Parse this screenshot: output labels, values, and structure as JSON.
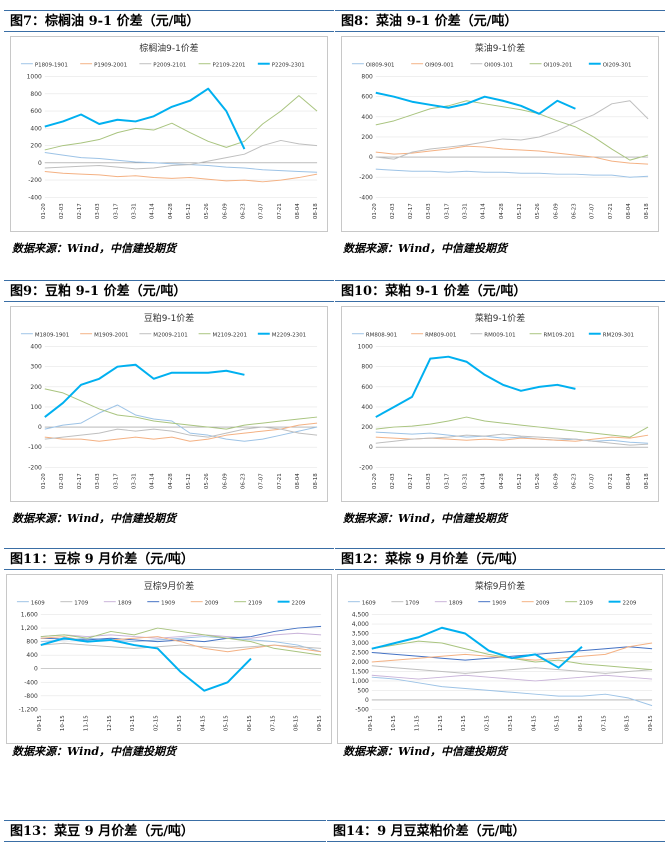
{
  "source_text": "数据来源：Wind，中信建投期货",
  "figures": [
    {
      "label": "图7：棕榈油 9-1 价差（元/吨）"
    },
    {
      "label": "图8：菜油 9-1 价差（元/吨）"
    },
    {
      "label": "图9：豆粕 9-1 价差（元/吨）"
    },
    {
      "label": "图10：菜粕 9-1 价差（元/吨）"
    },
    {
      "label": "图11：豆棕 9 月价差（元/吨）"
    },
    {
      "label": "图12：菜棕 9 月价差（元/吨）"
    },
    {
      "label": "图13：菜豆 9 月价差（元/吨）"
    },
    {
      "label": "图14：9 月豆菜粕价差（元/吨）"
    }
  ],
  "chart_data": [
    {
      "type": "line",
      "title": "棕榈油9-1价差",
      "ylim": [
        -400,
        1000
      ],
      "yticks": [
        "1000",
        "800",
        "600",
        "400",
        "200",
        "0",
        "-200",
        "-400"
      ],
      "categories": [
        "01-20",
        "02-03",
        "02-17",
        "03-03",
        "03-17",
        "03-31",
        "04-14",
        "04-28",
        "05-12",
        "05-26",
        "06-09",
        "06-23",
        "07-07",
        "07-21",
        "08-04",
        "08-18"
      ],
      "series": [
        {
          "name": "P1809-1901",
          "color": "#9dc3e6",
          "width": 1,
          "values": [
            120,
            90,
            60,
            50,
            30,
            10,
            0,
            -10,
            -20,
            -30,
            -50,
            -60,
            -80,
            -90,
            -100,
            -110
          ]
        },
        {
          "name": "P1909-2001",
          "color": "#f4b183",
          "width": 1,
          "values": [
            -100,
            -120,
            -130,
            -140,
            -160,
            -150,
            -170,
            -180,
            -170,
            -190,
            -210,
            -200,
            -220,
            -200,
            -170,
            -130
          ]
        },
        {
          "name": "P2009-2101",
          "color": "#bfbfbf",
          "width": 1,
          "values": [
            -60,
            -50,
            -40,
            -30,
            -50,
            -70,
            -60,
            -30,
            -20,
            20,
            60,
            100,
            200,
            260,
            220,
            200
          ]
        },
        {
          "name": "P2109-2201",
          "color": "#a9c47f",
          "width": 1,
          "values": [
            150,
            200,
            230,
            270,
            350,
            400,
            380,
            460,
            350,
            250,
            180,
            250,
            450,
            600,
            780,
            600
          ]
        },
        {
          "name": "P2209-2301",
          "color": "#00b0f0",
          "width": 2,
          "values": [
            420,
            480,
            560,
            450,
            500,
            480,
            540,
            650,
            720,
            860,
            600,
            160,
            null,
            null,
            null,
            null
          ]
        }
      ]
    },
    {
      "type": "line",
      "title": "菜油9-1价差",
      "ylim": [
        -400,
        800
      ],
      "yticks": [
        "800",
        "600",
        "400",
        "200",
        "0",
        "-200",
        "-400"
      ],
      "categories": [
        "01-20",
        "02-03",
        "02-17",
        "03-03",
        "03-17",
        "03-31",
        "04-14",
        "04-28",
        "05-12",
        "05-26",
        "06-09",
        "06-23",
        "07-07",
        "07-21",
        "08-04",
        "08-18"
      ],
      "series": [
        {
          "name": "OI809-901",
          "color": "#9dc3e6",
          "width": 1,
          "values": [
            -120,
            -130,
            -140,
            -140,
            -150,
            -140,
            -150,
            -150,
            -160,
            -160,
            -170,
            -170,
            -180,
            -180,
            -200,
            -190
          ]
        },
        {
          "name": "OI909-001",
          "color": "#f4b183",
          "width": 1,
          "values": [
            50,
            30,
            40,
            60,
            80,
            110,
            100,
            80,
            70,
            60,
            40,
            20,
            0,
            -40,
            -60,
            -70
          ]
        },
        {
          "name": "OI009-101",
          "color": "#bfbfbf",
          "width": 1,
          "values": [
            0,
            -20,
            50,
            80,
            100,
            120,
            150,
            180,
            170,
            200,
            260,
            350,
            420,
            530,
            560,
            380
          ]
        },
        {
          "name": "OI109-201",
          "color": "#a9c47f",
          "width": 1,
          "values": [
            320,
            360,
            420,
            480,
            510,
            560,
            530,
            500,
            470,
            430,
            360,
            300,
            200,
            80,
            -30,
            20
          ]
        },
        {
          "name": "OI209-301",
          "color": "#00b0f0",
          "width": 2,
          "values": [
            640,
            600,
            550,
            520,
            490,
            530,
            600,
            560,
            510,
            430,
            560,
            480,
            null,
            null,
            null,
            null
          ]
        }
      ]
    },
    {
      "type": "line",
      "title": "豆粕9-1价差",
      "ylim": [
        -200,
        400
      ],
      "yticks": [
        "400",
        "300",
        "200",
        "100",
        "0",
        "-100",
        "-200"
      ],
      "categories": [
        "01-20",
        "02-03",
        "02-17",
        "03-03",
        "03-17",
        "03-31",
        "04-14",
        "04-28",
        "05-12",
        "05-26",
        "06-09",
        "06-23",
        "07-07",
        "07-21",
        "08-04",
        "08-18"
      ],
      "series": [
        {
          "name": "M1809-1901",
          "color": "#9dc3e6",
          "width": 1,
          "values": [
            -10,
            10,
            20,
            70,
            110,
            60,
            40,
            30,
            -30,
            -40,
            -60,
            -70,
            -60,
            -40,
            -20,
            0
          ]
        },
        {
          "name": "M1909-2001",
          "color": "#f4b183",
          "width": 1,
          "values": [
            -50,
            -60,
            -60,
            -70,
            -60,
            -50,
            -60,
            -50,
            -70,
            -60,
            -40,
            -30,
            -20,
            -10,
            10,
            20
          ]
        },
        {
          "name": "M2009-2101",
          "color": "#bfbfbf",
          "width": 1,
          "values": [
            -60,
            -50,
            -40,
            -30,
            -10,
            -20,
            -10,
            -20,
            -40,
            -50,
            -30,
            -10,
            0,
            -10,
            -30,
            -40
          ]
        },
        {
          "name": "M2109-2201",
          "color": "#a9c47f",
          "width": 1,
          "values": [
            190,
            170,
            130,
            90,
            60,
            50,
            30,
            20,
            10,
            0,
            -10,
            10,
            20,
            30,
            40,
            50
          ]
        },
        {
          "name": "M2209-2301",
          "color": "#00b0f0",
          "width": 2,
          "values": [
            50,
            120,
            210,
            240,
            300,
            310,
            240,
            270,
            270,
            270,
            280,
            260,
            null,
            null,
            null,
            null
          ]
        }
      ]
    },
    {
      "type": "line",
      "title": "菜粕9-1价差",
      "ylim": [
        -200,
        1000
      ],
      "yticks": [
        "1000",
        "800",
        "600",
        "400",
        "200",
        "0",
        "-200"
      ],
      "categories": [
        "01-20",
        "02-03",
        "02-17",
        "03-03",
        "03-17",
        "03-31",
        "04-14",
        "04-28",
        "05-12",
        "05-26",
        "06-09",
        "06-23",
        "07-07",
        "07-21",
        "08-04",
        "08-18"
      ],
      "series": [
        {
          "name": "RM808-901",
          "color": "#9dc3e6",
          "width": 1,
          "values": [
            150,
            140,
            130,
            140,
            120,
            100,
            110,
            90,
            100,
            80,
            70,
            80,
            60,
            70,
            50,
            40
          ]
        },
        {
          "name": "RM809-001",
          "color": "#f4b183",
          "width": 1,
          "values": [
            100,
            90,
            80,
            90,
            80,
            70,
            80,
            70,
            90,
            80,
            70,
            60,
            80,
            100,
            90,
            120
          ]
        },
        {
          "name": "RM009-101",
          "color": "#bfbfbf",
          "width": 1,
          "values": [
            40,
            60,
            80,
            90,
            100,
            120,
            110,
            130,
            110,
            100,
            90,
            80,
            60,
            40,
            20,
            30
          ]
        },
        {
          "name": "RM109-201",
          "color": "#a9c47f",
          "width": 1,
          "values": [
            180,
            200,
            210,
            230,
            260,
            300,
            260,
            240,
            220,
            200,
            180,
            160,
            140,
            120,
            100,
            200
          ]
        },
        {
          "name": "RM209-301",
          "color": "#00b0f0",
          "width": 2,
          "values": [
            300,
            400,
            500,
            880,
            900,
            850,
            720,
            620,
            560,
            600,
            620,
            580,
            null,
            null,
            null,
            null
          ]
        }
      ]
    },
    {
      "type": "line",
      "title": "豆棕9月价差",
      "ylim": [
        -1200,
        1600
      ],
      "yticks": [
        "1,600",
        "1,200",
        "800",
        "400",
        "0",
        "-400",
        "-800",
        "-1,200"
      ],
      "categories": [
        "09-15",
        "10-15",
        "11-15",
        "12-15",
        "01-15",
        "02-15",
        "03-15",
        "04-15",
        "05-15",
        "06-15",
        "07-15",
        "08-15",
        "09-15"
      ],
      "series": [
        {
          "name": "1609",
          "color": "#9dc3e6",
          "width": 1,
          "values": [
            800,
            850,
            900,
            850,
            800,
            850,
            900,
            950,
            900,
            850,
            800,
            700,
            500
          ]
        },
        {
          "name": "1709",
          "color": "#bfbfbf",
          "width": 1,
          "values": [
            700,
            750,
            700,
            650,
            600,
            650,
            700,
            650,
            600,
            650,
            700,
            650,
            600
          ]
        },
        {
          "name": "1809",
          "color": "#c9b3d9",
          "width": 1,
          "values": [
            950,
            1000,
            950,
            1000,
            950,
            900,
            950,
            1000,
            950,
            900,
            1000,
            1050,
            1000
          ]
        },
        {
          "name": "1909",
          "color": "#4472c4",
          "width": 1,
          "values": [
            900,
            880,
            850,
            900,
            850,
            800,
            850,
            800,
            900,
            950,
            1100,
            1200,
            1250
          ]
        },
        {
          "name": "2009",
          "color": "#f4b183",
          "width": 1,
          "values": [
            900,
            950,
            800,
            850,
            900,
            950,
            800,
            600,
            500,
            600,
            700,
            600,
            500
          ]
        },
        {
          "name": "2109",
          "color": "#a9c47f",
          "width": 1,
          "values": [
            950,
            1000,
            900,
            1100,
            1000,
            1200,
            1100,
            1000,
            900,
            800,
            600,
            500,
            400
          ]
        },
        {
          "name": "2209",
          "color": "#00b0f0",
          "width": 2,
          "values": [
            700,
            900,
            800,
            850,
            700,
            600,
            -100,
            -650,
            -400,
            300,
            null,
            null,
            null
          ]
        }
      ]
    },
    {
      "type": "line",
      "title": "菜棕9月价差",
      "ylim": [
        -500,
        4500
      ],
      "yticks": [
        "4,500",
        "4,000",
        "3,500",
        "3,000",
        "2,500",
        "2,000",
        "1,500",
        "1,000",
        "500",
        "0",
        "-500"
      ],
      "categories": [
        "09-15",
        "10-15",
        "11-15",
        "12-15",
        "01-15",
        "02-15",
        "03-15",
        "04-15",
        "05-15",
        "06-15",
        "07-15",
        "08-15",
        "09-15"
      ],
      "series": [
        {
          "name": "1609",
          "color": "#9dc3e6",
          "width": 1,
          "values": [
            1200,
            1100,
            900,
            700,
            600,
            500,
            400,
            300,
            200,
            200,
            300,
            100,
            -300
          ]
        },
        {
          "name": "1709",
          "color": "#bfbfbf",
          "width": 1,
          "values": [
            1800,
            1700,
            1600,
            1500,
            1400,
            1500,
            1600,
            1700,
            1600,
            1500,
            1400,
            1500,
            1600
          ]
        },
        {
          "name": "1809",
          "color": "#c9b3d9",
          "width": 1,
          "values": [
            1300,
            1200,
            1100,
            1200,
            1300,
            1200,
            1100,
            1000,
            1100,
            1200,
            1300,
            1200,
            1100
          ]
        },
        {
          "name": "1909",
          "color": "#4472c4",
          "width": 1,
          "values": [
            2500,
            2400,
            2300,
            2200,
            2100,
            2200,
            2300,
            2400,
            2500,
            2600,
            2700,
            2800,
            2700
          ]
        },
        {
          "name": "2009",
          "color": "#f4b183",
          "width": 1,
          "values": [
            2000,
            2100,
            2200,
            2300,
            2400,
            2300,
            2200,
            2100,
            2200,
            2300,
            2400,
            2800,
            3000
          ]
        },
        {
          "name": "2109",
          "color": "#a9c47f",
          "width": 1,
          "values": [
            2700,
            2900,
            3100,
            3000,
            2700,
            2400,
            2200,
            2000,
            2100,
            1900,
            1800,
            1700,
            1600
          ]
        },
        {
          "name": "2209",
          "color": "#00b0f0",
          "width": 2,
          "values": [
            2700,
            3000,
            3300,
            3800,
            3500,
            2600,
            2200,
            2400,
            1700,
            2800,
            null,
            null,
            null
          ]
        }
      ]
    }
  ]
}
